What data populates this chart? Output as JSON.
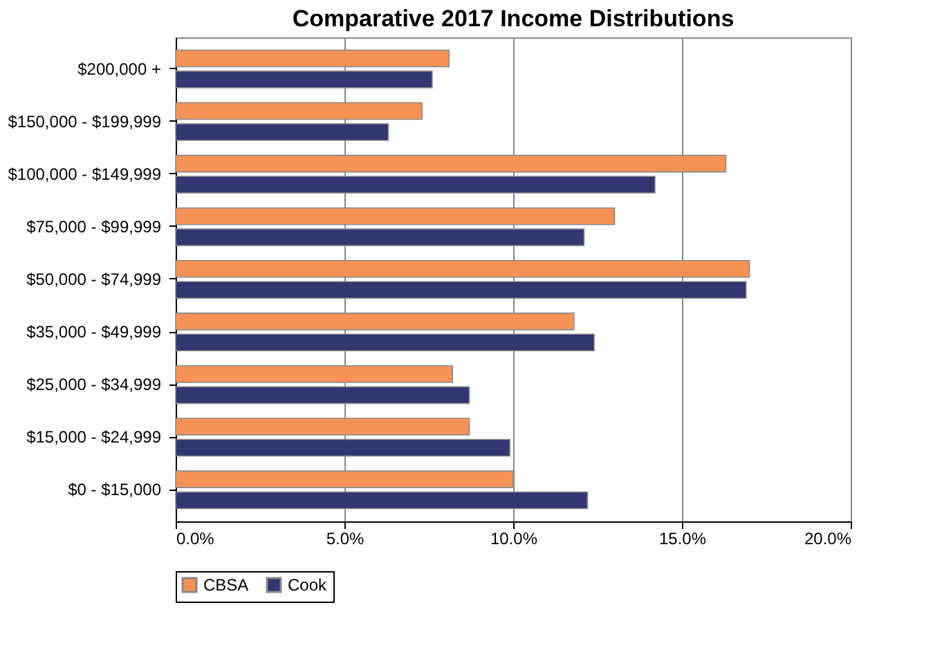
{
  "chart_data": {
    "type": "bar",
    "orientation": "horizontal",
    "title": "Comparative 2017 Income Distributions",
    "categories": [
      "$200,000 +",
      "$150,000 - $199,999",
      "$100,000 - $149,999",
      "$75,000 - $99,999",
      "$50,000 - $74,999",
      "$35,000 - $49,999",
      "$25,000 - $34,999",
      "$15,000 - $24,999",
      "$0 - $15,000"
    ],
    "series": [
      {
        "name": "CBSA",
        "color": "#f79256",
        "values": [
          8.1,
          7.3,
          16.3,
          13.0,
          17.0,
          11.8,
          8.2,
          8.7,
          10.0
        ]
      },
      {
        "name": "Cook",
        "color": "#333670",
        "values": [
          7.6,
          6.3,
          14.2,
          12.1,
          16.9,
          12.4,
          8.7,
          9.9,
          12.2
        ]
      }
    ],
    "xlim": [
      0,
      20
    ],
    "xticks": [
      {
        "value": 0,
        "label": "0.0%"
      },
      {
        "value": 5,
        "label": "5.0%"
      },
      {
        "value": 10,
        "label": "10.0%"
      },
      {
        "value": 15,
        "label": "15.0%"
      },
      {
        "value": 20,
        "label": "20.0%"
      }
    ],
    "grid": "x",
    "legend": "bottom"
  }
}
